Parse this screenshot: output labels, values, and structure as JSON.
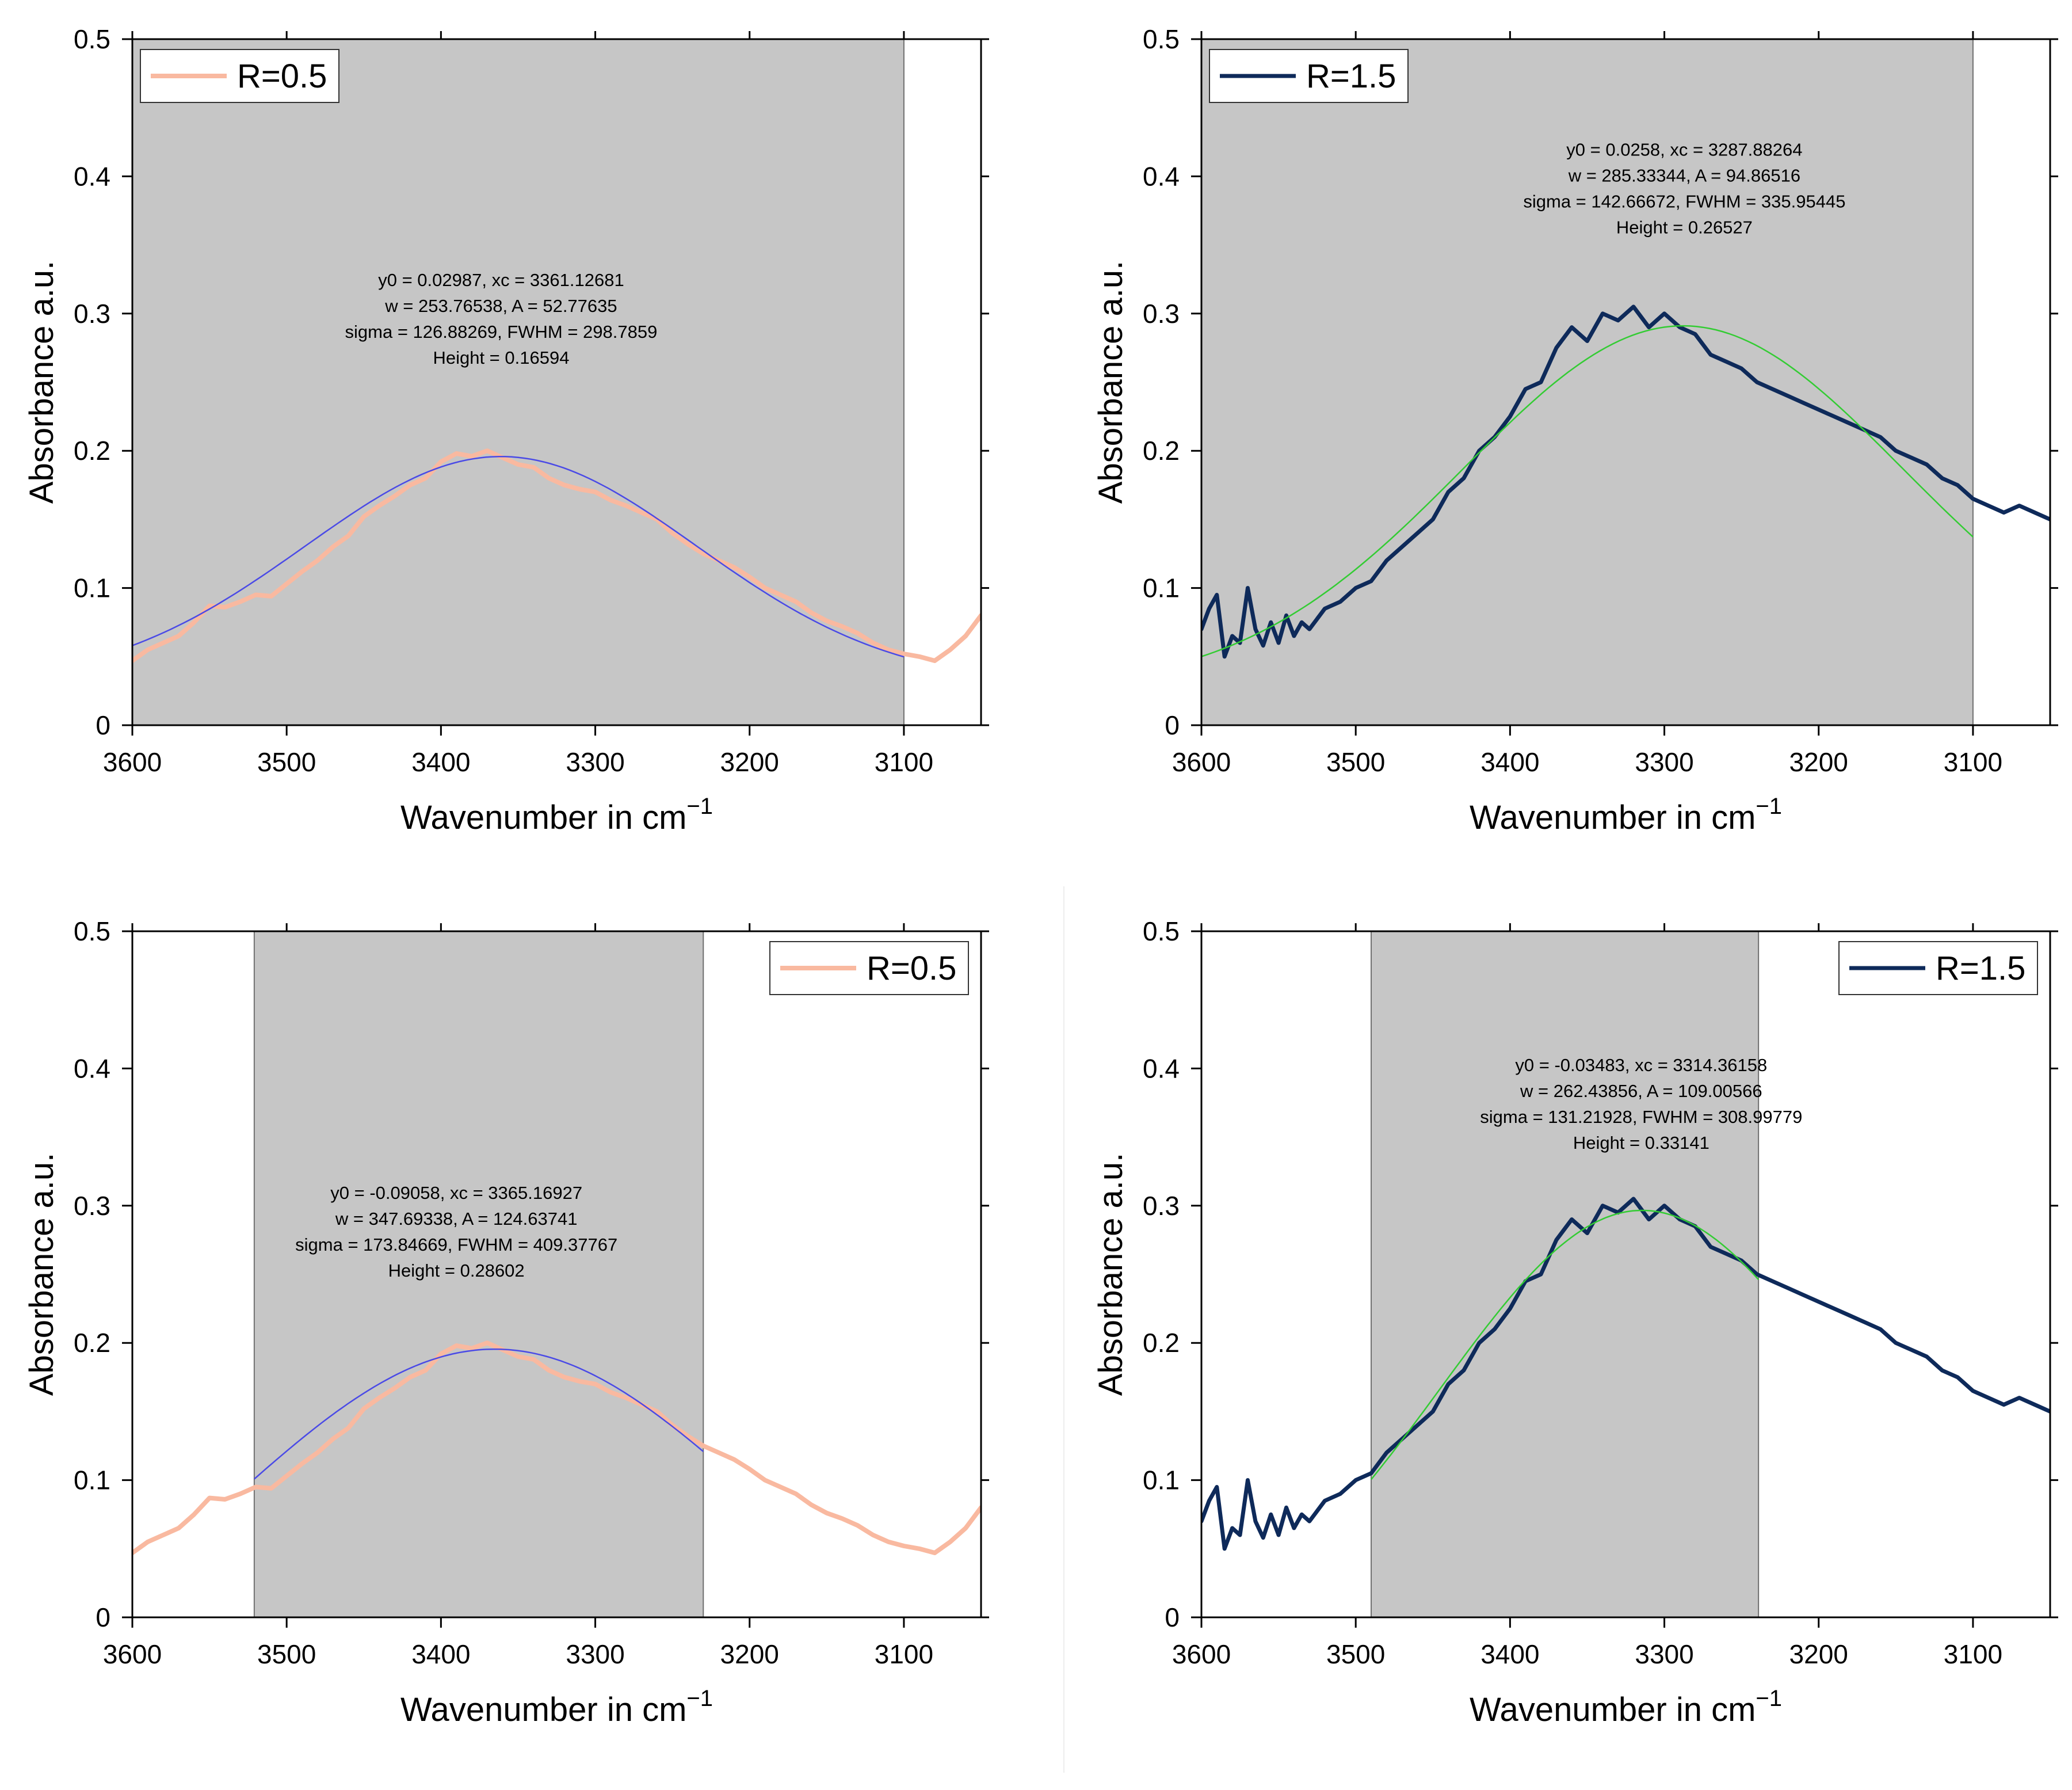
{
  "chart_data": [
    {
      "type": "line",
      "panel": "top-left",
      "xlabel": "Wavenumber in cm",
      "xlabel_sup": "−1",
      "ylabel": "Absorbance a.u.",
      "xlim": [
        3600,
        3050
      ],
      "ylim": [
        0,
        0.5
      ],
      "xticks": [
        3600,
        3500,
        3400,
        3300,
        3200,
        3100
      ],
      "yticks": [
        0,
        0.1,
        0.2,
        0.3,
        0.4,
        0.5
      ],
      "xtick_labels": [
        "3600",
        "3500",
        "3400",
        "3300",
        "3200",
        "3100"
      ],
      "ytick_labels": [
        "0",
        "0.1",
        "0.2",
        "0.3",
        "0.4",
        "0.5"
      ],
      "legend": {
        "label": "R=0.5",
        "position": "top-left"
      },
      "series_color": "#f9b9a0",
      "fit_color": "#4a4ae6",
      "fit_range": [
        3600,
        3100
      ],
      "fit_params": {
        "y0": 0.02987,
        "xc": 3361.12681,
        "w": 253.76538,
        "A": 52.77635
      },
      "annotation": [
        "y0 = 0.02987, xc = 3361.12681",
        "w = 253.76538, A = 52.77635",
        "sigma = 126.88269, FWHM = 298.7859",
        "Height = 0.16594"
      ],
      "annotation_pos": [
        3361,
        0.32
      ],
      "series": [
        {
          "name": "R=0.5",
          "x": [
            3600,
            3590,
            3580,
            3570,
            3560,
            3550,
            3540,
            3530,
            3520,
            3510,
            3500,
            3490,
            3480,
            3470,
            3460,
            3450,
            3440,
            3430,
            3420,
            3410,
            3400,
            3390,
            3380,
            3370,
            3360,
            3350,
            3340,
            3330,
            3320,
            3310,
            3300,
            3290,
            3280,
            3270,
            3260,
            3250,
            3240,
            3230,
            3220,
            3210,
            3200,
            3190,
            3180,
            3170,
            3160,
            3150,
            3140,
            3130,
            3120,
            3110,
            3100,
            3090,
            3080,
            3070,
            3060,
            3050
          ],
          "y": [
            0.047,
            0.055,
            0.06,
            0.065,
            0.075,
            0.087,
            0.086,
            0.09,
            0.095,
            0.094,
            0.103,
            0.112,
            0.12,
            0.13,
            0.138,
            0.152,
            0.16,
            0.167,
            0.175,
            0.18,
            0.192,
            0.198,
            0.196,
            0.2,
            0.195,
            0.19,
            0.188,
            0.18,
            0.175,
            0.172,
            0.17,
            0.164,
            0.16,
            0.155,
            0.15,
            0.14,
            0.132,
            0.125,
            0.12,
            0.115,
            0.108,
            0.1,
            0.095,
            0.09,
            0.082,
            0.076,
            0.072,
            0.067,
            0.06,
            0.055,
            0.052,
            0.05,
            0.047,
            0.055,
            0.065,
            0.08
          ]
        }
      ]
    },
    {
      "type": "line",
      "panel": "top-right",
      "xlabel": "Wavenumber in cm",
      "xlabel_sup": "−1",
      "ylabel": "Absorbance a.u.",
      "xlim": [
        3600,
        3050
      ],
      "ylim": [
        0,
        0.5
      ],
      "xticks": [
        3600,
        3500,
        3400,
        3300,
        3200,
        3100
      ],
      "yticks": [
        0,
        0.1,
        0.2,
        0.3,
        0.4,
        0.5
      ],
      "xtick_labels": [
        "3600",
        "3500",
        "3400",
        "3300",
        "3200",
        "3100"
      ],
      "ytick_labels": [
        "0",
        "0.1",
        "0.2",
        "0.3",
        "0.4",
        "0.5"
      ],
      "legend": {
        "label": "R=1.5",
        "position": "top-left"
      },
      "series_color": "#0e2a5a",
      "fit_color": "#33cc33",
      "fit_range": [
        3600,
        3100
      ],
      "fit_params": {
        "y0": 0.0258,
        "xc": 3287.88264,
        "w": 285.33344,
        "A": 94.86516
      },
      "annotation": [
        "y0 = 0.0258, xc = 3287.88264",
        "w = 285.33344, A = 94.86516",
        "sigma = 142.66672, FWHM = 335.95445",
        "Height = 0.26527"
      ],
      "annotation_pos": [
        3287,
        0.415
      ],
      "series": [
        {
          "name": "R=1.5",
          "x": [
            3600,
            3595,
            3590,
            3585,
            3580,
            3575,
            3570,
            3565,
            3560,
            3555,
            3550,
            3545,
            3540,
            3535,
            3530,
            3520,
            3510,
            3500,
            3490,
            3480,
            3470,
            3460,
            3450,
            3440,
            3430,
            3420,
            3410,
            3400,
            3390,
            3380,
            3370,
            3360,
            3350,
            3340,
            3330,
            3320,
            3310,
            3300,
            3290,
            3280,
            3270,
            3260,
            3250,
            3240,
            3230,
            3220,
            3210,
            3200,
            3190,
            3180,
            3170,
            3160,
            3150,
            3140,
            3130,
            3120,
            3110,
            3100,
            3090,
            3080,
            3070,
            3060,
            3050
          ],
          "y": [
            0.07,
            0.085,
            0.095,
            0.05,
            0.065,
            0.06,
            0.1,
            0.07,
            0.058,
            0.075,
            0.06,
            0.08,
            0.065,
            0.075,
            0.07,
            0.085,
            0.09,
            0.1,
            0.105,
            0.12,
            0.13,
            0.14,
            0.15,
            0.17,
            0.18,
            0.2,
            0.21,
            0.225,
            0.245,
            0.25,
            0.275,
            0.29,
            0.28,
            0.3,
            0.295,
            0.305,
            0.29,
            0.3,
            0.29,
            0.285,
            0.27,
            0.265,
            0.26,
            0.25,
            0.245,
            0.24,
            0.235,
            0.23,
            0.225,
            0.22,
            0.215,
            0.21,
            0.2,
            0.195,
            0.19,
            0.18,
            0.175,
            0.165,
            0.16,
            0.155,
            0.16,
            0.155,
            0.15
          ]
        }
      ]
    },
    {
      "type": "line",
      "panel": "bottom-left",
      "xlabel": "Wavenumber in cm",
      "xlabel_sup": "−1",
      "ylabel": "Absorbance a.u.",
      "xlim": [
        3600,
        3050
      ],
      "ylim": [
        0,
        0.5
      ],
      "xticks": [
        3600,
        3500,
        3400,
        3300,
        3200,
        3100
      ],
      "yticks": [
        0,
        0.1,
        0.2,
        0.3,
        0.4,
        0.5
      ],
      "xtick_labels": [
        "3600",
        "3500",
        "3400",
        "3300",
        "3200",
        "3100"
      ],
      "ytick_labels": [
        "0",
        "0.1",
        "0.2",
        "0.3",
        "0.4",
        "0.5"
      ],
      "legend": {
        "label": "R=0.5",
        "position": "top-right"
      },
      "series_color": "#f9b9a0",
      "fit_color": "#4a4ae6",
      "fit_range": [
        3521,
        3230
      ],
      "fit_params": {
        "y0": -0.09058,
        "xc": 3365.16927,
        "w": 347.69338,
        "A": 124.63741
      },
      "annotation": [
        "y0 = -0.09058, xc = 3365.16927",
        "w = 347.69338, A = 124.63741",
        "sigma = 173.84669, FWHM = 409.37767",
        "Height = 0.28602"
      ],
      "annotation_pos": [
        3390,
        0.305
      ],
      "series": [
        {
          "name": "R=0.5",
          "x": [
            3600,
            3590,
            3580,
            3570,
            3560,
            3550,
            3540,
            3530,
            3520,
            3510,
            3500,
            3490,
            3480,
            3470,
            3460,
            3450,
            3440,
            3430,
            3420,
            3410,
            3400,
            3390,
            3380,
            3370,
            3360,
            3350,
            3340,
            3330,
            3320,
            3310,
            3300,
            3290,
            3280,
            3270,
            3260,
            3250,
            3240,
            3230,
            3220,
            3210,
            3200,
            3190,
            3180,
            3170,
            3160,
            3150,
            3140,
            3130,
            3120,
            3110,
            3100,
            3090,
            3080,
            3070,
            3060,
            3050
          ],
          "y": [
            0.047,
            0.055,
            0.06,
            0.065,
            0.075,
            0.087,
            0.086,
            0.09,
            0.095,
            0.094,
            0.103,
            0.112,
            0.12,
            0.13,
            0.138,
            0.152,
            0.16,
            0.167,
            0.175,
            0.18,
            0.192,
            0.198,
            0.196,
            0.2,
            0.195,
            0.19,
            0.188,
            0.18,
            0.175,
            0.172,
            0.17,
            0.164,
            0.16,
            0.155,
            0.15,
            0.14,
            0.132,
            0.125,
            0.12,
            0.115,
            0.108,
            0.1,
            0.095,
            0.09,
            0.082,
            0.076,
            0.072,
            0.067,
            0.06,
            0.055,
            0.052,
            0.05,
            0.047,
            0.055,
            0.065,
            0.08
          ]
        }
      ]
    },
    {
      "type": "line",
      "panel": "bottom-right",
      "xlabel": "Wavenumber in cm",
      "xlabel_sup": "−1",
      "ylabel": "Absorbance a.u.",
      "xlim": [
        3600,
        3050
      ],
      "ylim": [
        0,
        0.5
      ],
      "xticks": [
        3600,
        3500,
        3400,
        3300,
        3200,
        3100
      ],
      "yticks": [
        0,
        0.1,
        0.2,
        0.3,
        0.4,
        0.5
      ],
      "xtick_labels": [
        "3600",
        "3500",
        "3400",
        "3300",
        "3200",
        "3100"
      ],
      "ytick_labels": [
        "0",
        "0.1",
        "0.2",
        "0.3",
        "0.4",
        "0.5"
      ],
      "legend": {
        "label": "R=1.5",
        "position": "top-right"
      },
      "series_color": "#0e2a5a",
      "fit_color": "#33cc33",
      "fit_range": [
        3490,
        3239
      ],
      "fit_params": {
        "y0": -0.03483,
        "xc": 3314.36158,
        "w": 262.43856,
        "A": 109.00566
      },
      "annotation": [
        "y0 = -0.03483, xc = 3314.36158",
        "w = 262.43856, A = 109.00566",
        "sigma = 131.21928, FWHM = 308.99779",
        "Height = 0.33141"
      ],
      "annotation_pos": [
        3315,
        0.398
      ],
      "series": [
        {
          "name": "R=1.5",
          "x": [
            3600,
            3595,
            3590,
            3585,
            3580,
            3575,
            3570,
            3565,
            3560,
            3555,
            3550,
            3545,
            3540,
            3535,
            3530,
            3520,
            3510,
            3500,
            3490,
            3480,
            3470,
            3460,
            3450,
            3440,
            3430,
            3420,
            3410,
            3400,
            3390,
            3380,
            3370,
            3360,
            3350,
            3340,
            3330,
            3320,
            3310,
            3300,
            3290,
            3280,
            3270,
            3260,
            3250,
            3240,
            3230,
            3220,
            3210,
            3200,
            3190,
            3180,
            3170,
            3160,
            3150,
            3140,
            3130,
            3120,
            3110,
            3100,
            3090,
            3080,
            3070,
            3060,
            3050
          ],
          "y": [
            0.07,
            0.085,
            0.095,
            0.05,
            0.065,
            0.06,
            0.1,
            0.07,
            0.058,
            0.075,
            0.06,
            0.08,
            0.065,
            0.075,
            0.07,
            0.085,
            0.09,
            0.1,
            0.105,
            0.12,
            0.13,
            0.14,
            0.15,
            0.17,
            0.18,
            0.2,
            0.21,
            0.225,
            0.245,
            0.25,
            0.275,
            0.29,
            0.28,
            0.3,
            0.295,
            0.305,
            0.29,
            0.3,
            0.29,
            0.285,
            0.27,
            0.265,
            0.26,
            0.25,
            0.245,
            0.24,
            0.235,
            0.23,
            0.225,
            0.22,
            0.215,
            0.21,
            0.2,
            0.195,
            0.19,
            0.18,
            0.175,
            0.165,
            0.16,
            0.155,
            0.16,
            0.155,
            0.15
          ]
        }
      ]
    }
  ]
}
